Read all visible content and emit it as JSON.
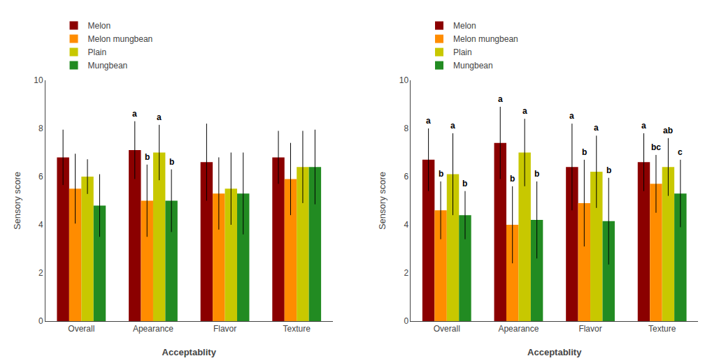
{
  "chart_data": [
    {
      "type": "bar",
      "xlabel": "Acceptablity",
      "ylabel": "Sensory score",
      "categories": [
        "Overall",
        "Apearance",
        "Flavor",
        "Texture"
      ],
      "series": [
        {
          "name": "Melon",
          "color": "#8B0000",
          "values": [
            6.8,
            7.1,
            6.6,
            6.8
          ],
          "errors": [
            1.15,
            1.2,
            1.6,
            1.1
          ],
          "annotations": [
            null,
            "a",
            null,
            null
          ]
        },
        {
          "name": "Melon mungbean",
          "color": "#FF8C00",
          "values": [
            5.5,
            5.0,
            5.3,
            5.9
          ],
          "errors": [
            1.45,
            1.5,
            1.5,
            1.5
          ],
          "annotations": [
            null,
            "b",
            null,
            null
          ]
        },
        {
          "name": "Plain",
          "color": "#C8C800",
          "values": [
            6.0,
            7.0,
            5.5,
            6.4
          ],
          "errors": [
            0.72,
            1.15,
            1.5,
            1.5
          ],
          "annotations": [
            null,
            "a",
            null,
            null
          ]
        },
        {
          "name": "Mungbean",
          "color": "#228B22",
          "values": [
            4.8,
            5.0,
            5.3,
            6.4
          ],
          "errors": [
            1.3,
            1.3,
            1.7,
            1.55
          ],
          "annotations": [
            null,
            "b",
            null,
            null
          ]
        }
      ],
      "ylim": [
        0,
        10
      ],
      "yticks": [
        0,
        2,
        4,
        6,
        8,
        10
      ],
      "grid": false,
      "legend": "upper left"
    },
    {
      "type": "bar",
      "xlabel": "Acceptablity",
      "ylabel": "Sensory score",
      "categories": [
        "Overall",
        "Apearance",
        "Flavor",
        "Texture"
      ],
      "series": [
        {
          "name": "Melon",
          "color": "#8B0000",
          "values": [
            6.7,
            7.4,
            6.4,
            6.6
          ],
          "errors": [
            1.3,
            1.5,
            1.8,
            1.2
          ],
          "annotations": [
            "a",
            "a",
            "a",
            "a"
          ]
        },
        {
          "name": "Melon mungbean",
          "color": "#FF8C00",
          "values": [
            4.6,
            4.0,
            4.9,
            5.7
          ],
          "errors": [
            1.2,
            1.6,
            1.8,
            1.2
          ],
          "annotations": [
            "b",
            "b",
            "b",
            "bc"
          ]
        },
        {
          "name": "Plain",
          "color": "#C8C800",
          "values": [
            6.1,
            7.0,
            6.2,
            6.4
          ],
          "errors": [
            1.7,
            1.4,
            1.5,
            1.2
          ],
          "annotations": [
            "a",
            "a",
            "a",
            "ab"
          ]
        },
        {
          "name": "Mungbean",
          "color": "#228B22",
          "values": [
            4.4,
            4.2,
            4.15,
            5.3
          ],
          "errors": [
            1.0,
            1.6,
            1.8,
            1.4
          ],
          "annotations": [
            "b",
            "b",
            "b",
            "c"
          ]
        }
      ],
      "ylim": [
        0,
        10
      ],
      "yticks": [
        0,
        2,
        4,
        6,
        8,
        10
      ],
      "grid": false,
      "legend": "upper left"
    }
  ]
}
